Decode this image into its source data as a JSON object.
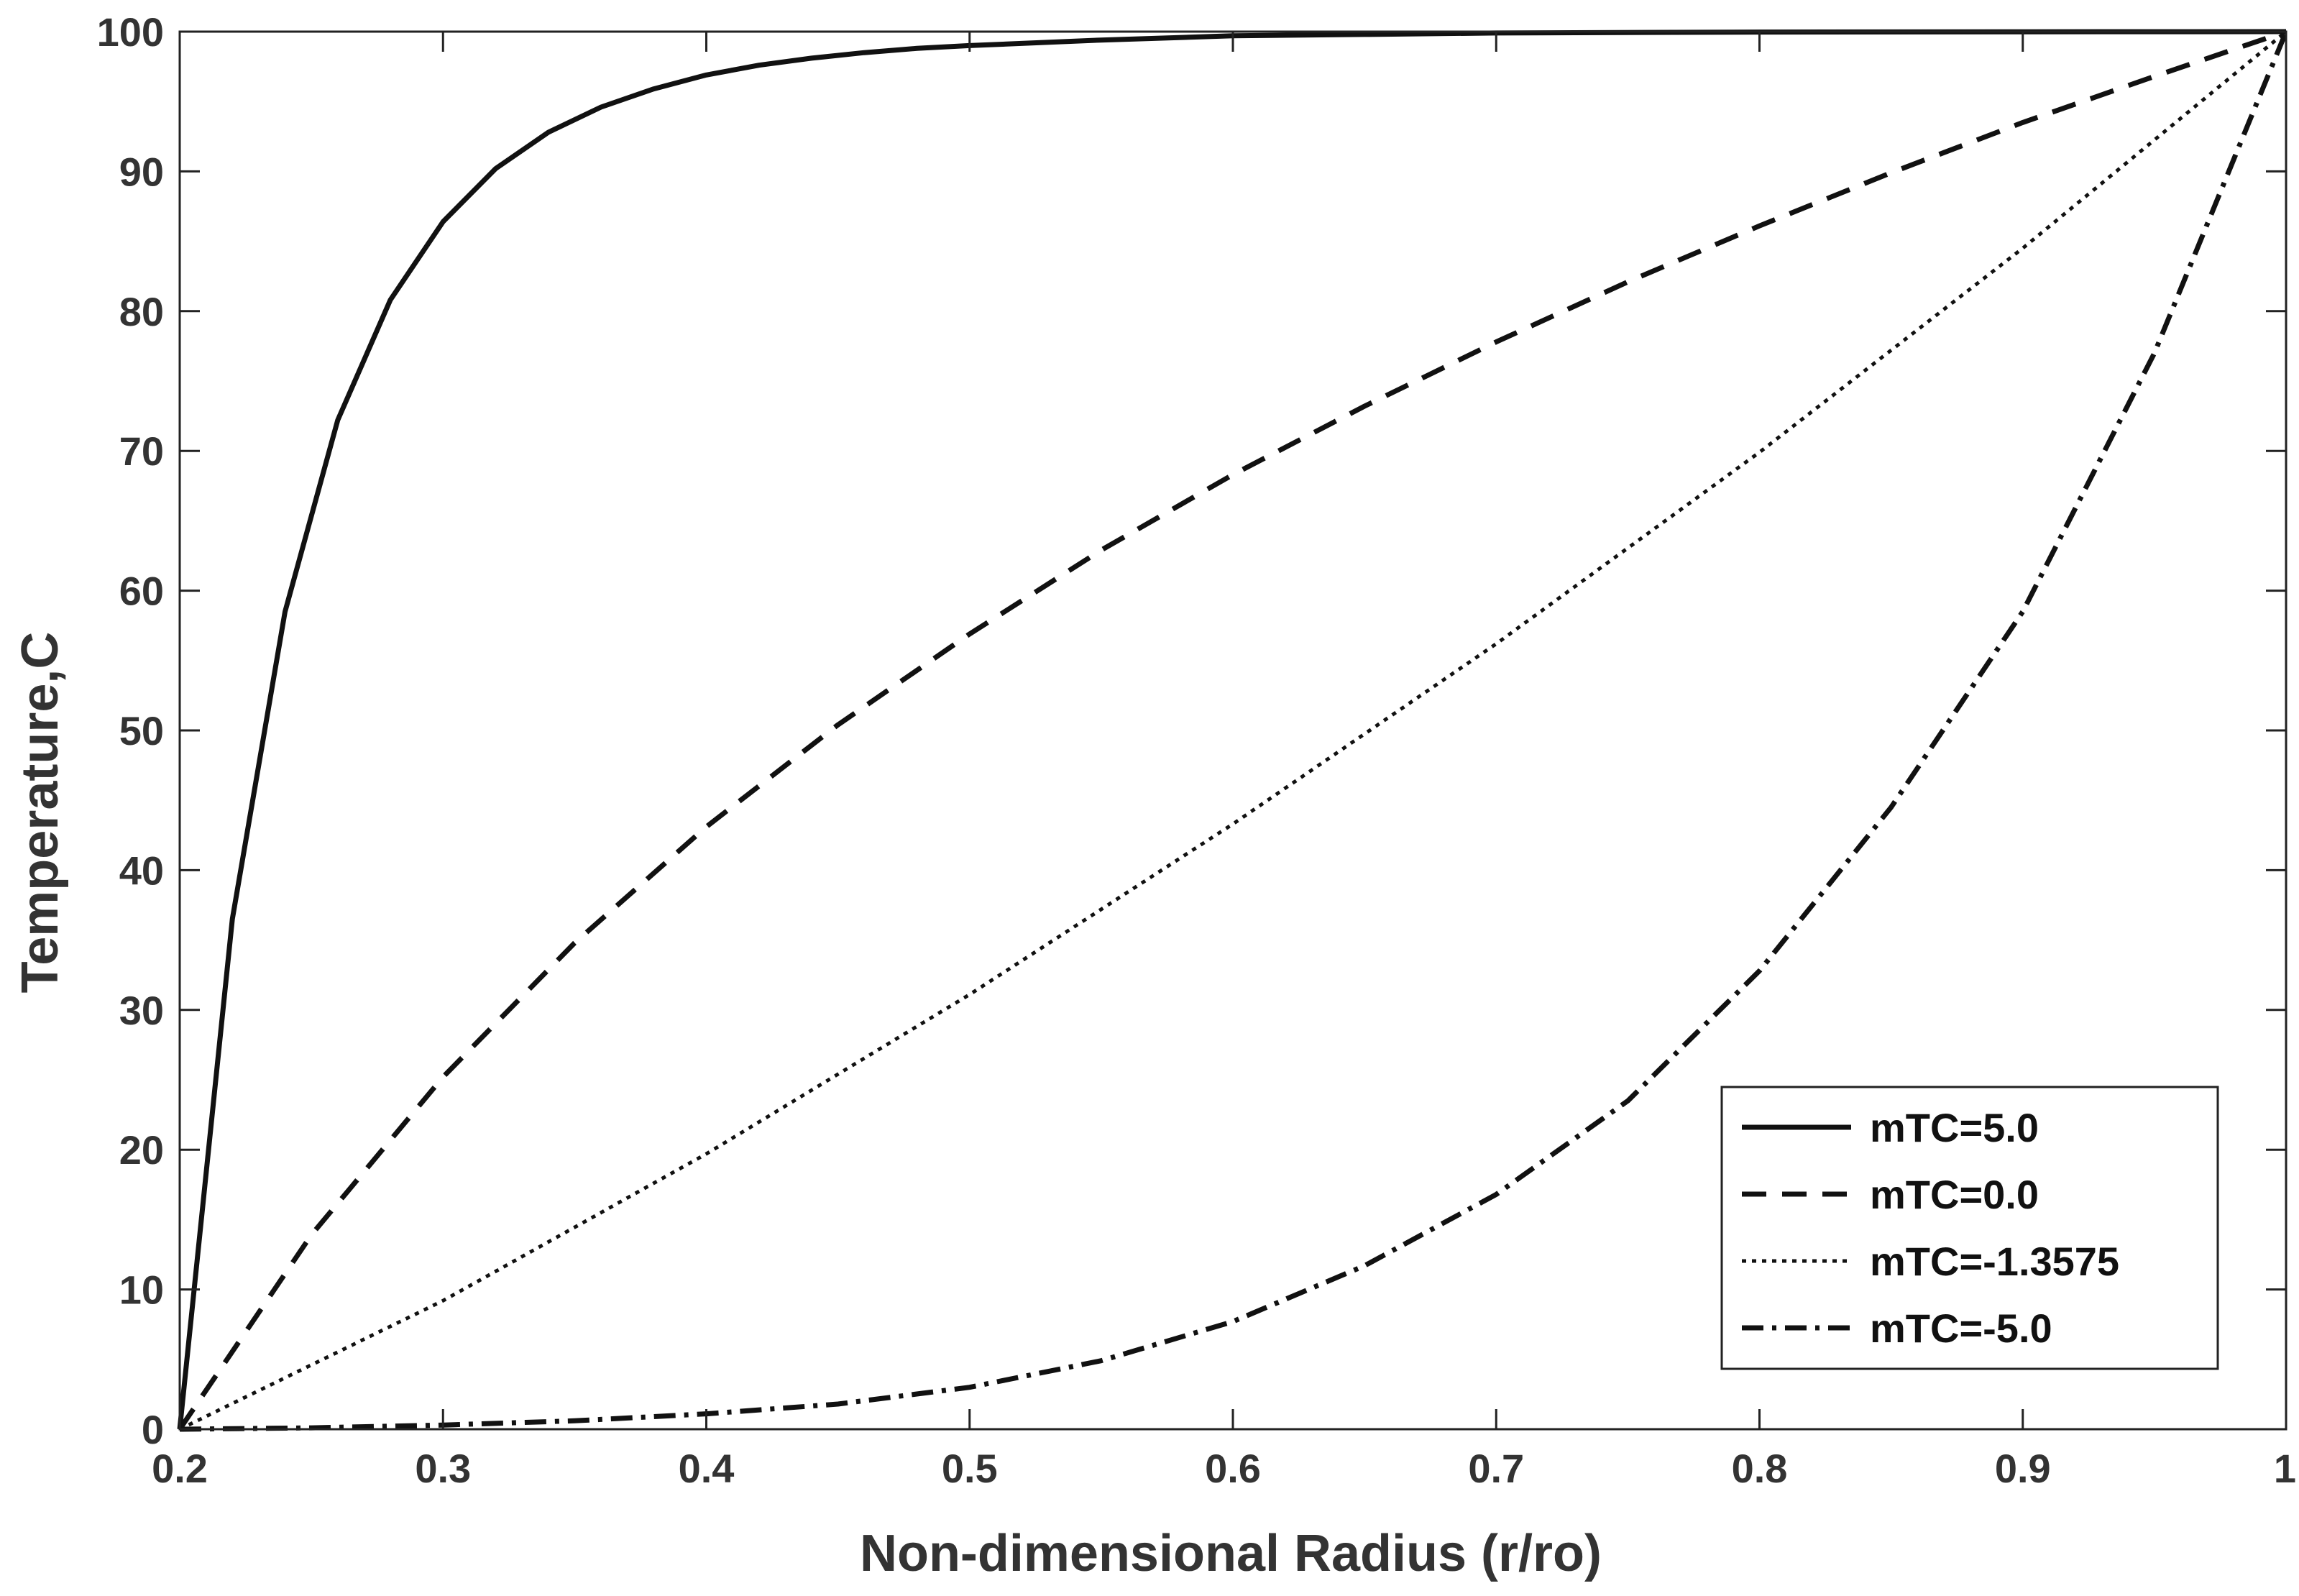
{
  "chart_data": {
    "type": "line",
    "title": "",
    "xlabel": "Non-dimensional Radius (r/ro)",
    "ylabel": "Temperature,C",
    "xlim": [
      0.2,
      1.0
    ],
    "ylim": [
      0,
      100
    ],
    "xticks": [
      0.2,
      0.3,
      0.4,
      0.5,
      0.6,
      0.7,
      0.8,
      0.9,
      1.0
    ],
    "xtick_labels": [
      "0.2",
      "0.3",
      "0.4",
      "0.5",
      "0.6",
      "0.7",
      "0.8",
      "0.9",
      "1"
    ],
    "yticks": [
      0,
      10,
      20,
      30,
      40,
      50,
      60,
      70,
      80,
      90,
      100
    ],
    "ytick_labels": [
      "0",
      "10",
      "20",
      "30",
      "40",
      "50",
      "60",
      "70",
      "80",
      "90",
      "100"
    ],
    "grid": false,
    "legend_position": "bottom-right",
    "series": [
      {
        "name": "mTC=5.0",
        "style": "solid",
        "x": [
          0.2,
          0.22,
          0.24,
          0.26,
          0.28,
          0.3,
          0.32,
          0.34,
          0.36,
          0.38,
          0.4,
          0.42,
          0.44,
          0.46,
          0.48,
          0.5,
          0.55,
          0.6,
          0.65,
          0.7,
          0.8,
          0.9,
          1.0
        ],
        "y": [
          0,
          36.5,
          58.5,
          72.2,
          80.8,
          86.4,
          90.2,
          92.8,
          94.6,
          95.9,
          96.9,
          97.6,
          98.1,
          98.5,
          98.8,
          99.0,
          99.4,
          99.7,
          99.8,
          99.9,
          99.97,
          99.99,
          100
        ]
      },
      {
        "name": "mTC=0.0",
        "style": "dashed",
        "x": [
          0.2,
          0.25,
          0.3,
          0.35,
          0.4,
          0.45,
          0.5,
          0.55,
          0.6,
          0.65,
          0.7,
          0.75,
          0.8,
          0.85,
          0.9,
          0.95,
          1.0
        ],
        "y": [
          0,
          13.9,
          25.2,
          34.8,
          43.1,
          50.4,
          56.9,
          62.9,
          68.3,
          73.2,
          77.8,
          82.1,
          86.1,
          89.9,
          93.5,
          96.8,
          100
        ]
      },
      {
        "name": "mTC=-1.3575",
        "style": "dotted",
        "x": [
          0.2,
          0.3,
          0.4,
          0.5,
          0.6,
          0.7,
          0.8,
          0.9,
          1.0
        ],
        "y": [
          0,
          9.2,
          19.7,
          31.1,
          43.3,
          56.2,
          69.9,
          84.5,
          100
        ]
      },
      {
        "name": "mTC=-5.0",
        "style": "dashdot",
        "x": [
          0.2,
          0.25,
          0.3,
          0.35,
          0.4,
          0.45,
          0.5,
          0.55,
          0.6,
          0.65,
          0.7,
          0.75,
          0.8,
          0.85,
          0.9,
          0.95,
          1.0
        ],
        "y": [
          0,
          0.1,
          0.3,
          0.6,
          1.1,
          1.8,
          3.0,
          4.9,
          7.7,
          11.7,
          16.8,
          23.5,
          32.8,
          44.5,
          58.5,
          77.0,
          100
        ]
      }
    ]
  }
}
